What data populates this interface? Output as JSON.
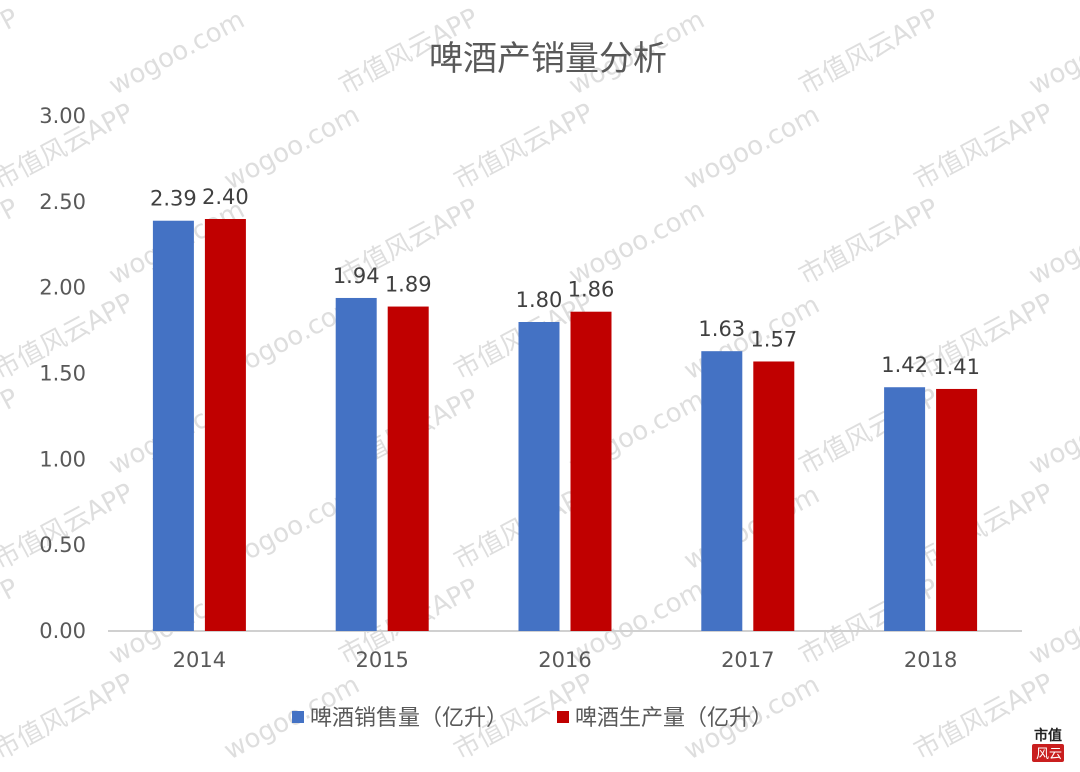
{
  "chart_data": {
    "type": "bar",
    "title": "啤酒产销量分析",
    "categories": [
      "2014",
      "2015",
      "2016",
      "2017",
      "2018"
    ],
    "series": [
      {
        "name": "啤酒销售量（亿升）",
        "values": [
          2.39,
          1.94,
          1.8,
          1.63,
          1.42
        ],
        "labels": [
          "2.39",
          "1.94",
          "1.80",
          "1.63",
          "1.42"
        ],
        "color": "#4472c4"
      },
      {
        "name": "啤酒生产量（亿升）",
        "values": [
          2.4,
          1.89,
          1.86,
          1.57,
          1.41
        ],
        "labels": [
          "2.40",
          "1.89",
          "1.86",
          "1.57",
          "1.41"
        ],
        "color": "#c00000"
      }
    ],
    "y_ticks": [
      "0.00",
      "0.50",
      "1.00",
      "1.50",
      "2.00",
      "2.50",
      "3.00"
    ],
    "ylim": [
      0,
      3
    ],
    "grid": false,
    "legend_position": "bottom"
  },
  "watermark": {
    "lines": [
      "wogoo.com",
      "市值风云APP"
    ],
    "corner_logo": [
      "市值",
      "风云"
    ]
  }
}
